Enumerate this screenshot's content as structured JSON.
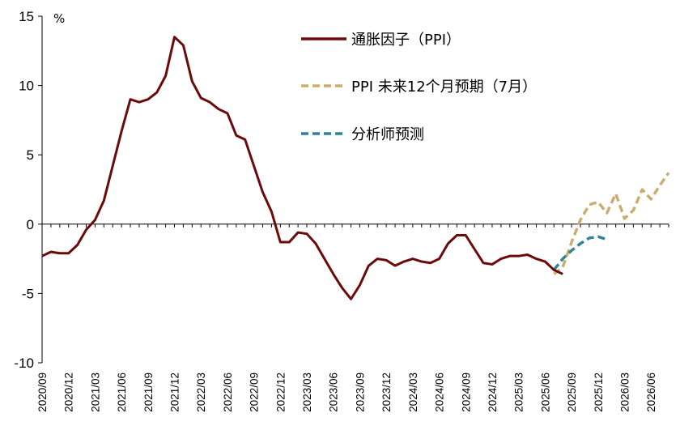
{
  "chart_data": {
    "type": "line",
    "unit_label": "%",
    "ylim": [
      -10,
      15
    ],
    "y_ticks": [
      15,
      10,
      5,
      0,
      -5,
      -10
    ],
    "x_tick_labels": [
      "2020/09",
      "2020/12",
      "2021/03",
      "2021/06",
      "2021/09",
      "2021/12",
      "2022/03",
      "2022/06",
      "2022/09",
      "2022/12",
      "2023/03",
      "2023/06",
      "2023/09",
      "2023/12",
      "2024/03",
      "2024/06",
      "2024/09",
      "2024/12",
      "2025/03",
      "2025/06",
      "2025/09",
      "2025/12",
      "2026/03",
      "2026/06"
    ],
    "legend_position": "top-right",
    "grid": false,
    "series": [
      {
        "name": "通胀因子（PPI）",
        "color": "#6b0a0a",
        "style": "solid",
        "values": [
          -2.3,
          -2.0,
          -2.1,
          -2.1,
          -1.5,
          -0.4,
          0.3,
          1.7,
          4.2,
          6.7,
          9.0,
          8.8,
          9.0,
          9.5,
          10.7,
          13.5,
          12.9,
          10.3,
          9.1,
          8.8,
          8.3,
          8.0,
          6.4,
          6.1,
          4.2,
          2.3,
          0.9,
          -1.3,
          -1.3,
          -0.6,
          -0.7,
          -1.4,
          -2.5,
          -3.6,
          -4.6,
          -5.4,
          -4.4,
          -3.0,
          -2.5,
          -2.6,
          -3.0,
          -2.7,
          -2.5,
          -2.7,
          -2.8,
          -2.5,
          -1.4,
          -0.8,
          -0.8,
          -1.8,
          -2.8,
          -2.9,
          -2.5,
          -2.3,
          -2.3,
          -2.2,
          -2.5,
          -2.7,
          -3.3,
          -3.6
        ],
        "start_index": 0
      },
      {
        "name": "PPI 未来12个月预期（7月）",
        "color": "#c8ad6e",
        "style": "dashed",
        "values": [
          -3.6,
          -3.1,
          -1.3,
          0.3,
          1.4,
          1.6,
          0.8,
          2.2,
          0.4,
          1.0,
          2.5,
          1.8,
          2.8,
          3.7
        ],
        "start_index": 58
      },
      {
        "name": "分析师预测",
        "color": "#2e8494",
        "style": "dashed",
        "values": [
          -3.3,
          -2.5,
          -1.9,
          -1.4,
          -1.0,
          -0.9,
          -1.1
        ],
        "start_index": 58
      }
    ]
  }
}
